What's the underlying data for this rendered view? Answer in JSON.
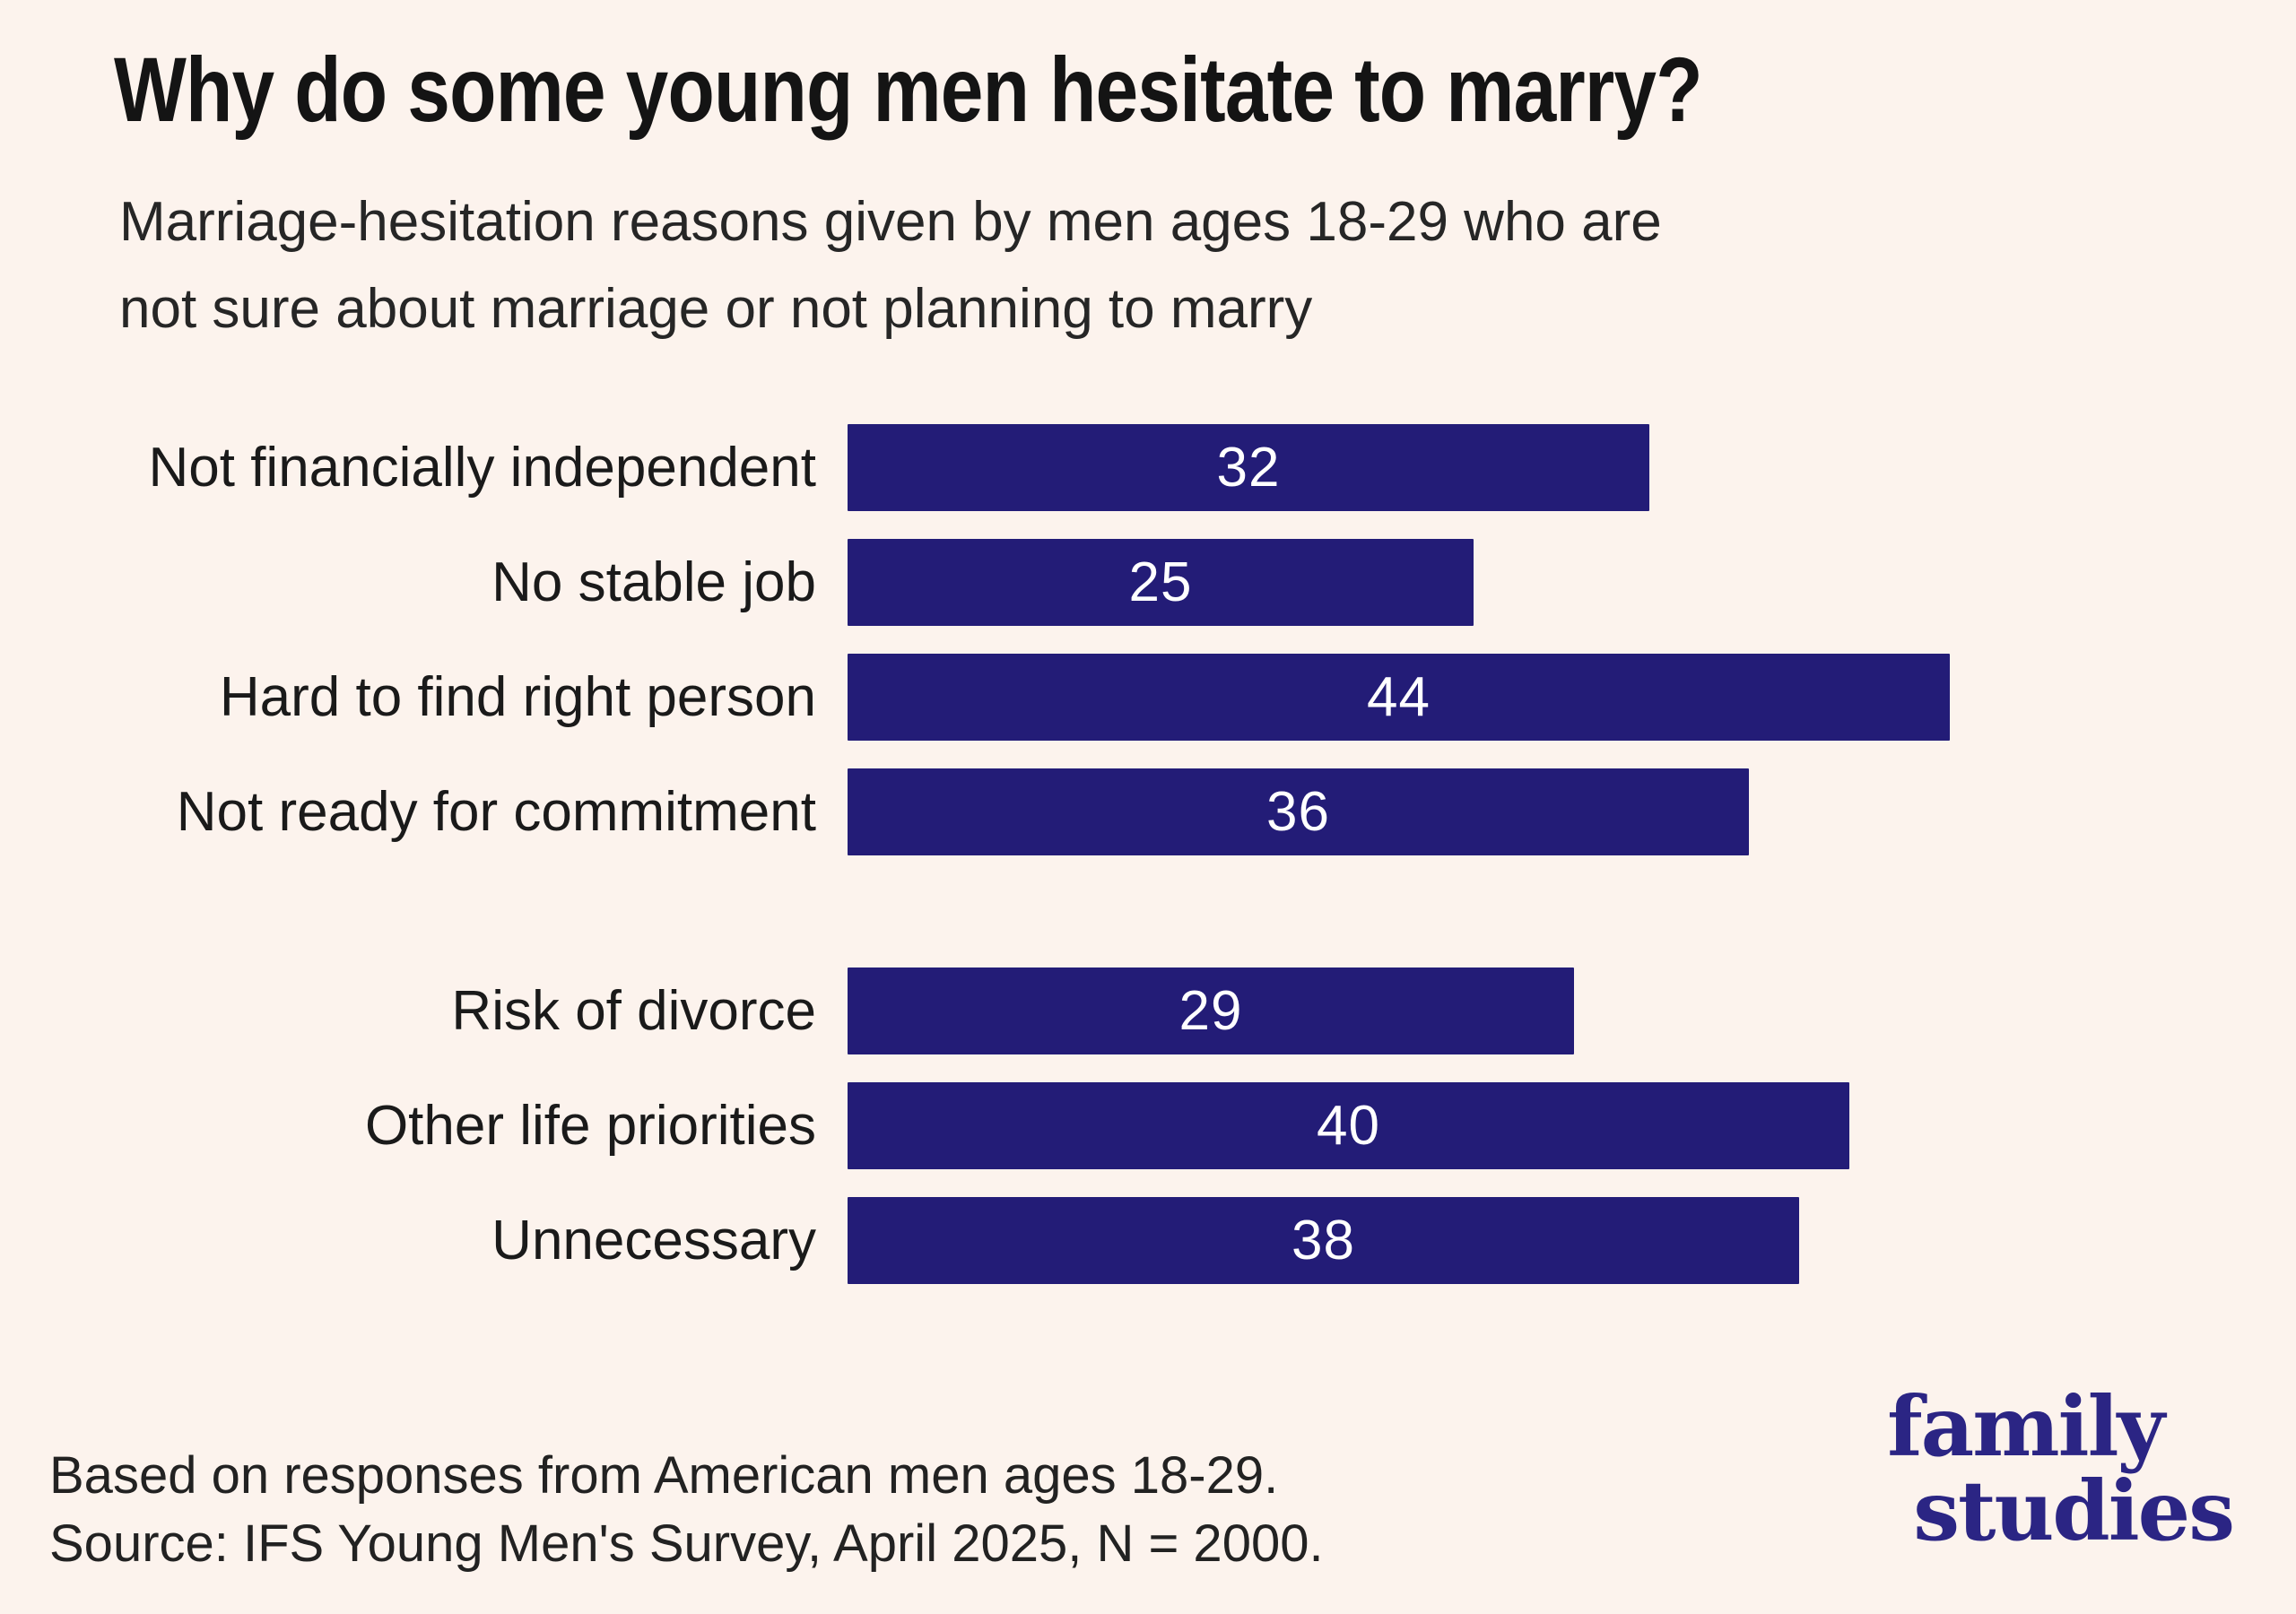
{
  "header": {
    "title": "Why do some young men hesitate to marry?",
    "subtitle_line1": "Marriage-hesitation reasons given by men ages 18-29 who are",
    "subtitle_line2": "not sure about marriage or not planning to marry"
  },
  "chart_data": {
    "type": "bar",
    "orientation": "horizontal",
    "title": "Why do some young men hesitate to marry?",
    "subtitle": "Marriage-hesitation reasons given by men ages 18-29 who are not sure about marriage or not planning to marry",
    "unit": "percent",
    "value_axis_range": [
      0,
      44
    ],
    "value_labels": "inside-center",
    "grid": false,
    "legend": false,
    "categories": [
      "Not financially independent",
      "No stable job",
      "Hard to find right person",
      "Not ready for commitment",
      "Risk of divorce",
      "Other life priorities",
      "Unnecessary"
    ],
    "values": [
      32,
      25,
      44,
      36,
      29,
      40,
      38
    ],
    "groups": [
      {
        "items": [
          {
            "label": "Not financially independent",
            "value": 32
          },
          {
            "label": "No stable job",
            "value": 25
          },
          {
            "label": "Hard to find right person",
            "value": 44
          },
          {
            "label": "Not ready for commitment",
            "value": 36
          }
        ]
      },
      {
        "items": [
          {
            "label": "Risk of divorce",
            "value": 29
          },
          {
            "label": "Other life priorities",
            "value": 40
          },
          {
            "label": "Unnecessary",
            "value": 38
          }
        ]
      }
    ]
  },
  "footer": {
    "line1": "Based on responses from American men ages 18-29.",
    "line2": "Source: IFS Young Men's Survey, April 2025, N = 2000."
  },
  "logo": {
    "line1": "family",
    "line2": "studies"
  },
  "colors": {
    "background": "#fcf3ed",
    "bar": "#231c77",
    "bar_value_text": "#ffffff",
    "title_text": "#141414",
    "body_text": "#262626",
    "logo": "#2b2584"
  }
}
